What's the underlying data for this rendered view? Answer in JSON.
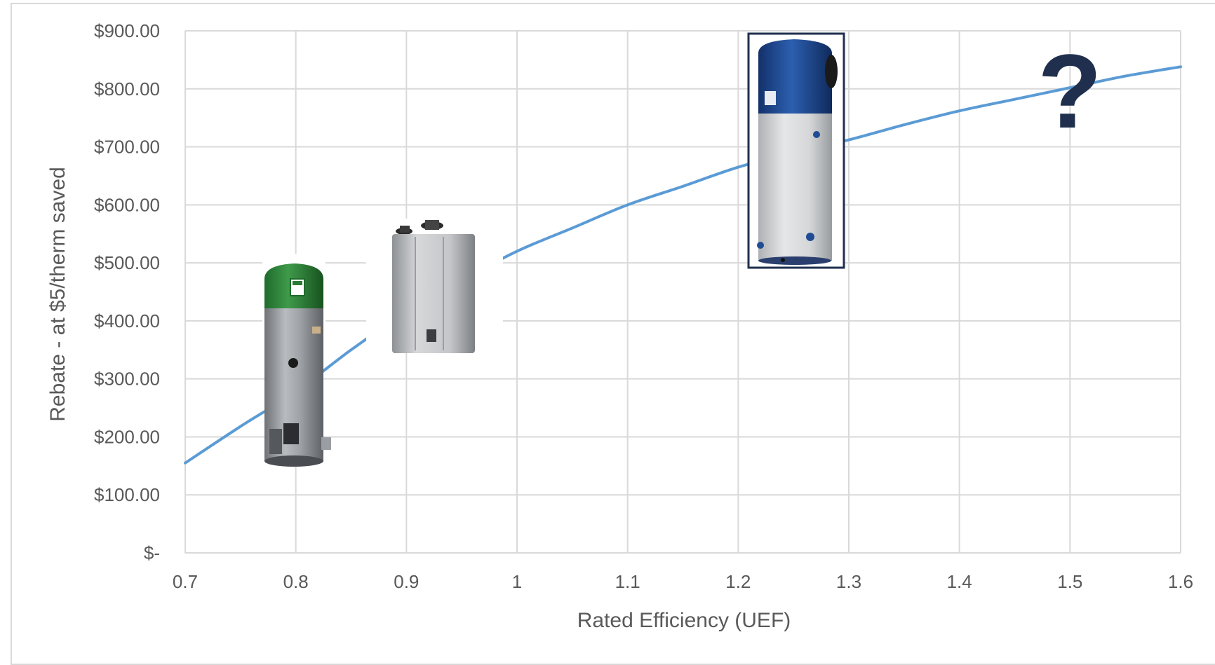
{
  "chart_data": {
    "type": "line",
    "xlabel": "Rated Efficiency (UEF)",
    "ylabel": "Rebate - at $5/therm saved",
    "xlim": [
      0.7,
      1.6
    ],
    "ylim": [
      0,
      900
    ],
    "x_ticks": [
      0.7,
      0.8,
      0.9,
      1.0,
      1.1,
      1.2,
      1.3,
      1.4,
      1.5,
      1.6
    ],
    "x_tick_labels": [
      "0.7",
      "0.8",
      "0.9",
      "1",
      "1.1",
      "1.2",
      "1.3",
      "1.4",
      "1.5",
      "1.6"
    ],
    "y_ticks": [
      0,
      100,
      200,
      300,
      400,
      500,
      600,
      700,
      800,
      900
    ],
    "y_tick_labels": [
      "$-",
      "$100.00",
      "$200.00",
      "$300.00",
      "$400.00",
      "$500.00",
      "$600.00",
      "$700.00",
      "$800.00",
      "$900.00"
    ],
    "grid": true,
    "series": [
      {
        "color": "#5b9bd5",
        "x": [
          0.7,
          0.75,
          0.8,
          0.85,
          0.9,
          0.95,
          1.0,
          1.05,
          1.1,
          1.15,
          1.2,
          1.25,
          1.3,
          1.35,
          1.4,
          1.45,
          1.5,
          1.55,
          1.6
        ],
        "y": [
          155,
          218,
          278,
          350,
          415,
          470,
          520,
          560,
          600,
          632,
          665,
          690,
          712,
          738,
          762,
          782,
          802,
          822,
          838
        ]
      }
    ],
    "annotations": [
      {
        "kind": "image",
        "icon": "tank-water-heater-icon",
        "x": 0.8
      },
      {
        "kind": "image",
        "icon": "tankless-water-heater-icon",
        "x": 0.925
      },
      {
        "kind": "image",
        "icon": "heat-pump-water-heater-icon",
        "x": 1.25
      },
      {
        "kind": "text",
        "text": "?",
        "x": 1.5
      }
    ]
  }
}
